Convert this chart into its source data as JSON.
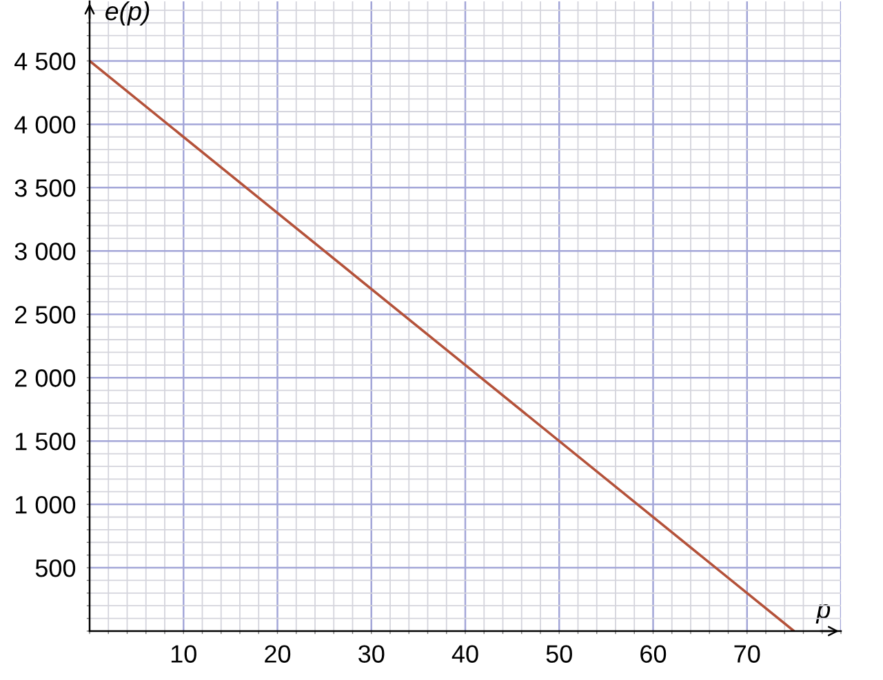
{
  "chart_data": {
    "type": "line",
    "xlabel": "p",
    "ylabel": "e(p)",
    "x": [
      0,
      75
    ],
    "series": [
      {
        "color": "#b4523a",
        "values": [
          4500,
          0
        ]
      }
    ],
    "xlim": [
      0,
      80
    ],
    "ylim": [
      0,
      4970
    ],
    "xticks": [
      10,
      20,
      30,
      40,
      50,
      60,
      70,
      {
        "value": 80,
        "label": null
      }
    ],
    "yticks": [
      {
        "value": 500,
        "label": "500"
      },
      {
        "value": 1000,
        "label": "1 000"
      },
      {
        "value": 1500,
        "label": "1 500"
      },
      {
        "value": 2000,
        "label": "2 000"
      },
      {
        "value": 2500,
        "label": "2 500"
      },
      {
        "value": 3000,
        "label": "3 000"
      },
      {
        "value": 3500,
        "label": "3 500"
      },
      {
        "value": 4000,
        "label": "4 000"
      },
      {
        "value": 4500,
        "label": "4 500"
      }
    ],
    "grid": true,
    "line_style": "solid"
  }
}
